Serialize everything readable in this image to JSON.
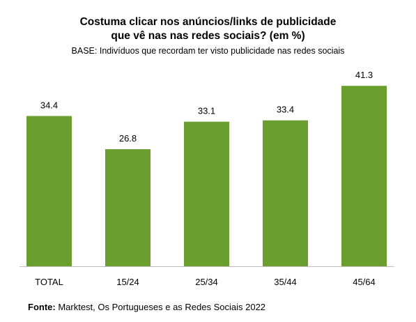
{
  "chart_data": {
    "type": "bar",
    "title_line1": "Costuma clicar nos anúncios/links de publicidade",
    "title_line2": "que vê nas nas redes sociais? (em %)",
    "subtitle": "BASE: Indivíduos que recordam ter visto publicidade nas redes sociais",
    "categories": [
      "TOTAL",
      "15/24",
      "25/34",
      "35/44",
      "45/64"
    ],
    "values": [
      34.4,
      26.8,
      33.1,
      33.4,
      41.3
    ],
    "value_labels": [
      "34.4",
      "26.8",
      "33.1",
      "33.4",
      "41.3"
    ],
    "ylim": [
      0,
      45
    ],
    "grid": false,
    "legend": "none",
    "bar_color": "#6a9e2f",
    "axis_color": "#bfbfbf"
  },
  "source": {
    "label": "Fonte:",
    "text": " Marktest, Os Portugueses e as Redes Sociais 2022"
  }
}
